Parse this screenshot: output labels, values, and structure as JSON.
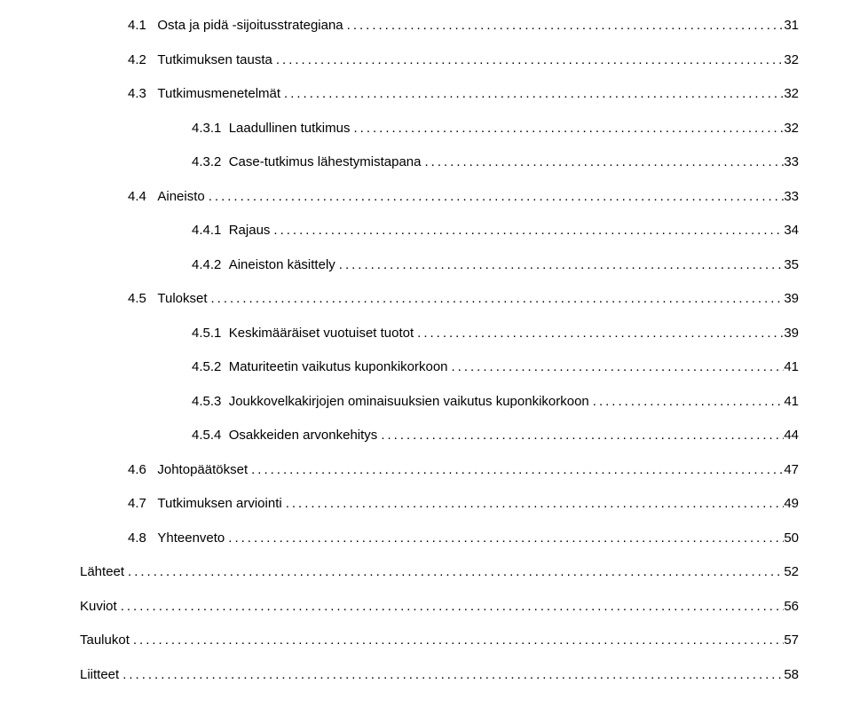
{
  "font": {
    "family": "Verdana, Geneva, sans-serif",
    "size_pt": 11,
    "color": "#000000"
  },
  "background_color": "#ffffff",
  "leader_char": ".",
  "entries": [
    {
      "indent": 1,
      "num": "4.1",
      "label": "Osta ja pidä -sijoitusstrategiana",
      "page": "31"
    },
    {
      "indent": 1,
      "num": "4.2",
      "label": "Tutkimuksen tausta",
      "page": "32"
    },
    {
      "indent": 1,
      "num": "4.3",
      "label": "Tutkimusmenetelmät",
      "page": "32"
    },
    {
      "indent": 2,
      "num": "4.3.1",
      "label": "Laadullinen tutkimus",
      "page": "32"
    },
    {
      "indent": 2,
      "num": "4.3.2",
      "label": "Case-tutkimus lähestymistapana",
      "page": "33"
    },
    {
      "indent": 1,
      "num": "4.4",
      "label": "Aineisto",
      "page": "33"
    },
    {
      "indent": 2,
      "num": "4.4.1",
      "label": "Rajaus",
      "page": "34"
    },
    {
      "indent": 2,
      "num": "4.4.2",
      "label": "Aineiston käsittely",
      "page": "35"
    },
    {
      "indent": 1,
      "num": "4.5",
      "label": "Tulokset",
      "page": "39"
    },
    {
      "indent": 2,
      "num": "4.5.1",
      "label": "Keskimääräiset vuotuiset tuotot",
      "page": "39"
    },
    {
      "indent": 2,
      "num": "4.5.2",
      "label": "Maturiteetin vaikutus kuponkikorkoon",
      "page": "41"
    },
    {
      "indent": 2,
      "num": "4.5.3",
      "label": "Joukkovelkakirjojen ominaisuuksien vaikutus kuponkikorkoon",
      "page": "41"
    },
    {
      "indent": 2,
      "num": "4.5.4",
      "label": "Osakkeiden arvonkehitys",
      "page": "44"
    },
    {
      "indent": 1,
      "num": "4.6",
      "label": "Johtopäätökset",
      "page": "47"
    },
    {
      "indent": 1,
      "num": "4.7",
      "label": "Tutkimuksen arviointi",
      "page": "49"
    },
    {
      "indent": 1,
      "num": "4.8",
      "label": "Yhteenveto",
      "page": "50"
    },
    {
      "indent": 0,
      "num": "",
      "label": "Lähteet",
      "page": "52"
    },
    {
      "indent": 0,
      "num": "",
      "label": "Kuviot",
      "page": "56"
    },
    {
      "indent": 0,
      "num": "",
      "label": "Taulukot",
      "page": "57"
    },
    {
      "indent": 0,
      "num": "",
      "label": "Liitteet",
      "page": "58"
    }
  ]
}
